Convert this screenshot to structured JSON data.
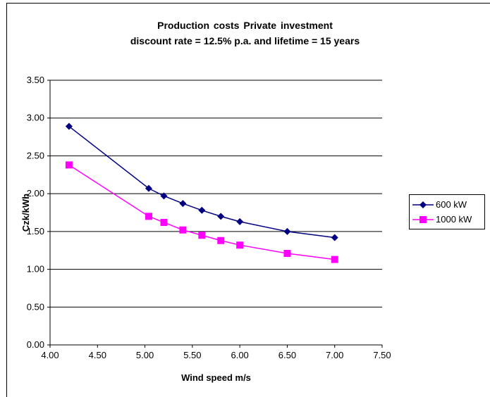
{
  "chart_data": {
    "type": "line",
    "title": "Production costs        Private investment",
    "subtitle": "discount rate = 12.5% p.a. and lifetime = 15 years",
    "xlabel": "Wind speed m/s",
    "ylabel": "Czk/kWh",
    "xlim": [
      4.0,
      7.5
    ],
    "ylim": [
      0.0,
      3.5
    ],
    "xticks": [
      "4.00",
      "4.50",
      "5.00",
      "5.50",
      "6.00",
      "6.50",
      "7.00",
      "7.50"
    ],
    "yticks": [
      "0.00",
      "0.50",
      "1.00",
      "1.50",
      "2.00",
      "2.50",
      "3.00",
      "3.50"
    ],
    "grid": "horizontal",
    "legend_position": "right",
    "series": [
      {
        "name": "600 kW",
        "color": "#000080",
        "marker": "diamond",
        "x": [
          4.2,
          5.04,
          5.2,
          5.4,
          5.6,
          5.8,
          6.0,
          6.5,
          7.0
        ],
        "y": [
          2.89,
          2.07,
          1.97,
          1.87,
          1.78,
          1.7,
          1.63,
          1.5,
          1.42
        ]
      },
      {
        "name": "1000 kW",
        "color": "#FF00FF",
        "marker": "square",
        "x": [
          4.2,
          5.04,
          5.2,
          5.4,
          5.6,
          5.8,
          6.0,
          6.5,
          7.0
        ],
        "y": [
          2.38,
          1.7,
          1.62,
          1.52,
          1.45,
          1.38,
          1.32,
          1.21,
          1.13
        ]
      }
    ]
  }
}
